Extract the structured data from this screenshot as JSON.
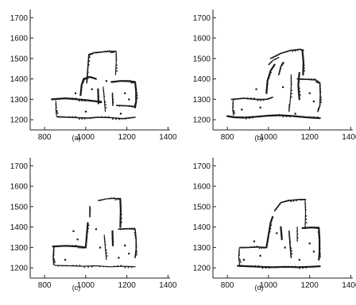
{
  "chart_data": [
    {
      "type": "scatter",
      "caption": "(a)",
      "xlim": [
        730,
        1410
      ],
      "ylim": [
        1150,
        1740
      ],
      "x_ticks": [
        800,
        1000,
        1200,
        1400
      ],
      "y_ticks": [
        1200,
        1300,
        1400,
        1500,
        1600,
        1700
      ],
      "grid": false,
      "series": [
        {
          "paths": [
            [
              [
                835,
                1300
              ],
              [
                900,
                1305
              ],
              [
                960,
                1300
              ],
              [
                1010,
                1295
              ],
              [
                1050,
                1290
              ],
              [
                1075,
                1285
              ]
            ],
            [
              [
                860,
                1215
              ],
              [
                900,
                1213
              ],
              [
                960,
                1210
              ],
              [
                1010,
                1208
              ],
              [
                1060,
                1212
              ],
              [
                1120,
                1210
              ],
              [
                1180,
                1205
              ],
              [
                1240,
                1212
              ]
            ],
            [
              [
                855,
                1290
              ],
              [
                855,
                1250
              ],
              [
                858,
                1220
              ]
            ],
            [
              [
                975,
                1320
              ],
              [
                980,
                1370
              ],
              [
                990,
                1400
              ],
              [
                1020,
                1410
              ],
              [
                1050,
                1400
              ]
            ],
            [
              [
                1005,
                1380
              ],
              [
                1010,
                1450
              ],
              [
                1015,
                1520
              ],
              [
                1040,
                1528
              ],
              [
                1080,
                1532
              ],
              [
                1120,
                1535
              ],
              [
                1145,
                1535
              ]
            ],
            [
              [
                1148,
                1535
              ],
              [
                1148,
                1480
              ],
              [
                1145,
                1420
              ]
            ],
            [
              [
                1125,
                1385
              ],
              [
                1170,
                1390
              ],
              [
                1220,
                1388
              ],
              [
                1240,
                1385
              ],
              [
                1245,
                1340
              ],
              [
                1245,
                1290
              ],
              [
                1240,
                1260
              ]
            ],
            [
              [
                1150,
                1270
              ],
              [
                1200,
                1268
              ],
              [
                1240,
                1262
              ]
            ],
            [
              [
                1085,
                1360
              ],
              [
                1090,
                1300
              ],
              [
                1095,
                1240
              ]
            ],
            [
              [
                1060,
                1350
              ],
              [
                1062,
                1280
              ]
            ],
            [
              [
                1130,
                1330
              ],
              [
                1132,
                1270
              ]
            ]
          ],
          "specks": [
            [
              950,
              1330
            ],
            [
              1030,
              1350
            ],
            [
              1190,
              1330
            ],
            [
              1210,
              1300
            ],
            [
              1100,
              1390
            ],
            [
              1000,
              1240
            ],
            [
              1170,
              1230
            ]
          ]
        }
      ]
    },
    {
      "type": "scatter",
      "caption": "(b)",
      "xlim": [
        730,
        1410
      ],
      "ylim": [
        1150,
        1740
      ],
      "x_ticks": [
        800,
        1000,
        1200,
        1400
      ],
      "y_ticks": [
        1200,
        1300,
        1400,
        1500,
        1600,
        1700
      ],
      "grid": false,
      "series": [
        {
          "paths": [
            [
              [
                800,
                1218
              ],
              [
                830,
                1212
              ],
              [
                880,
                1210
              ],
              [
                940,
                1215
              ],
              [
                1000,
                1220
              ],
              [
                1060,
                1222
              ],
              [
                1120,
                1218
              ],
              [
                1180,
                1212
              ],
              [
                1250,
                1208
              ]
            ],
            [
              [
                820,
                1300
              ],
              [
                880,
                1305
              ],
              [
                940,
                1300
              ],
              [
                990,
                1300
              ],
              [
                1020,
                1310
              ]
            ],
            [
              [
                828,
                1295
              ],
              [
                826,
                1250
              ],
              [
                830,
                1220
              ]
            ],
            [
              [
                990,
                1330
              ],
              [
                995,
                1390
              ],
              [
                1010,
                1440
              ],
              [
                1030,
                1470
              ]
            ],
            [
              [
                1010,
                1500
              ],
              [
                1060,
                1525
              ],
              [
                1110,
                1540
              ],
              [
                1155,
                1545
              ],
              [
                1170,
                1540
              ]
            ],
            [
              [
                1000,
                1470
              ],
              [
                1020,
                1490
              ],
              [
                1050,
                1505
              ]
            ],
            [
              [
                1165,
                1535
              ],
              [
                1170,
                1480
              ],
              [
                1168,
                1420
              ]
            ],
            [
              [
                1140,
                1400
              ],
              [
                1180,
                1398
              ],
              [
                1230,
                1395
              ],
              [
                1250,
                1380
              ],
              [
                1252,
                1320
              ],
              [
                1250,
                1270
              ],
              [
                1240,
                1240
              ]
            ],
            [
              [
                1110,
                1420
              ],
              [
                1110,
                1360
              ],
              [
                1105,
                1290
              ],
              [
                1100,
                1240
              ]
            ],
            [
              [
                1150,
                1430
              ],
              [
                1145,
                1370
              ],
              [
                1150,
                1300
              ]
            ],
            [
              [
                1050,
                1420
              ],
              [
                1060,
                1460
              ],
              [
                1070,
                1480
              ]
            ]
          ],
          "specks": [
            [
              940,
              1350
            ],
            [
              960,
              1260
            ],
            [
              1070,
              1360
            ],
            [
              1200,
              1330
            ],
            [
              1220,
              1290
            ],
            [
              870,
              1250
            ],
            [
              1130,
              1230
            ]
          ]
        }
      ]
    },
    {
      "type": "scatter",
      "caption": "(c)",
      "xlim": [
        730,
        1410
      ],
      "ylim": [
        1150,
        1740
      ],
      "x_ticks": [
        800,
        1000,
        1200,
        1400
      ],
      "y_ticks": [
        1200,
        1300,
        1400,
        1500,
        1600,
        1700
      ],
      "grid": false,
      "series": [
        {
          "paths": [
            [
              [
                840,
                1305
              ],
              [
                900,
                1308
              ],
              [
                960,
                1305
              ],
              [
                1000,
                1300
              ]
            ],
            [
              [
                845,
                1300
              ],
              [
                842,
                1250
              ],
              [
                845,
                1215
              ]
            ],
            [
              [
                850,
                1212
              ],
              [
                920,
                1210
              ],
              [
                980,
                1208
              ],
              [
                1050,
                1210
              ],
              [
                1120,
                1205
              ],
              [
                1180,
                1208
              ],
              [
                1240,
                1206
              ]
            ],
            [
              [
                1000,
                1300
              ],
              [
                1005,
                1360
              ],
              [
                1010,
                1420
              ]
            ],
            [
              [
                1020,
                1450
              ],
              [
                1020,
                1500
              ]
            ],
            [
              [
                1060,
                1530
              ],
              [
                1100,
                1538
              ],
              [
                1140,
                1540
              ],
              [
                1170,
                1540
              ]
            ],
            [
              [
                1168,
                1535
              ],
              [
                1170,
                1480
              ],
              [
                1168,
                1400
              ]
            ],
            [
              [
                1160,
                1390
              ],
              [
                1200,
                1392
              ],
              [
                1240,
                1390
              ],
              [
                1245,
                1340
              ],
              [
                1245,
                1290
              ],
              [
                1240,
                1250
              ]
            ],
            [
              [
                1090,
                1360
              ],
              [
                1095,
                1300
              ],
              [
                1100,
                1240
              ]
            ],
            [
              [
                1130,
                1380
              ],
              [
                1132,
                1310
              ]
            ]
          ],
          "specks": [
            [
              940,
              1380
            ],
            [
              960,
              1340
            ],
            [
              1050,
              1390
            ],
            [
              1190,
              1310
            ],
            [
              1210,
              1270
            ],
            [
              1070,
              1300
            ],
            [
              900,
              1240
            ],
            [
              1160,
              1250
            ]
          ]
        }
      ]
    },
    {
      "type": "scatter",
      "caption": "(d)",
      "xlim": [
        730,
        1410
      ],
      "ylim": [
        1150,
        1740
      ],
      "x_ticks": [
        800,
        1000,
        1200,
        1400
      ],
      "y_ticks": [
        1200,
        1300,
        1400,
        1500,
        1600,
        1700
      ],
      "grid": false,
      "series": [
        {
          "paths": [
            [
              [
                850,
                1210
              ],
              [
                900,
                1208
              ],
              [
                960,
                1205
              ],
              [
                1020,
                1203
              ],
              [
                1080,
                1205
              ],
              [
                1140,
                1203
              ],
              [
                1200,
                1205
              ],
              [
                1250,
                1208
              ]
            ],
            [
              [
                860,
                1300
              ],
              [
                900,
                1300
              ],
              [
                950,
                1302
              ],
              [
                990,
                1300
              ]
            ],
            [
              [
                858,
                1295
              ],
              [
                855,
                1250
              ],
              [
                860,
                1215
              ]
            ],
            [
              [
                990,
                1300
              ],
              [
                1000,
                1360
              ],
              [
                1010,
                1420
              ],
              [
                1020,
                1450
              ]
            ],
            [
              [
                1030,
                1480
              ],
              [
                1060,
                1520
              ],
              [
                1100,
                1530
              ],
              [
                1150,
                1535
              ],
              [
                1180,
                1535
              ]
            ],
            [
              [
                1178,
                1530
              ],
              [
                1180,
                1470
              ],
              [
                1178,
                1400
              ]
            ],
            [
              [
                1165,
                1395
              ],
              [
                1210,
                1398
              ],
              [
                1245,
                1395
              ],
              [
                1248,
                1340
              ],
              [
                1248,
                1280
              ],
              [
                1245,
                1240
              ]
            ],
            [
              [
                1100,
                1380
              ],
              [
                1105,
                1310
              ],
              [
                1110,
                1250
              ]
            ],
            [
              [
                1140,
                1400
              ],
              [
                1140,
                1330
              ]
            ],
            [
              [
                1060,
                1400
              ],
              [
                1065,
                1340
              ]
            ]
          ],
          "specks": [
            [
              930,
              1330
            ],
            [
              960,
              1260
            ],
            [
              1200,
              1320
            ],
            [
              1220,
              1280
            ],
            [
              1080,
              1300
            ],
            [
              880,
              1240
            ],
            [
              1150,
              1240
            ],
            [
              1040,
              1370
            ]
          ]
        }
      ]
    }
  ]
}
